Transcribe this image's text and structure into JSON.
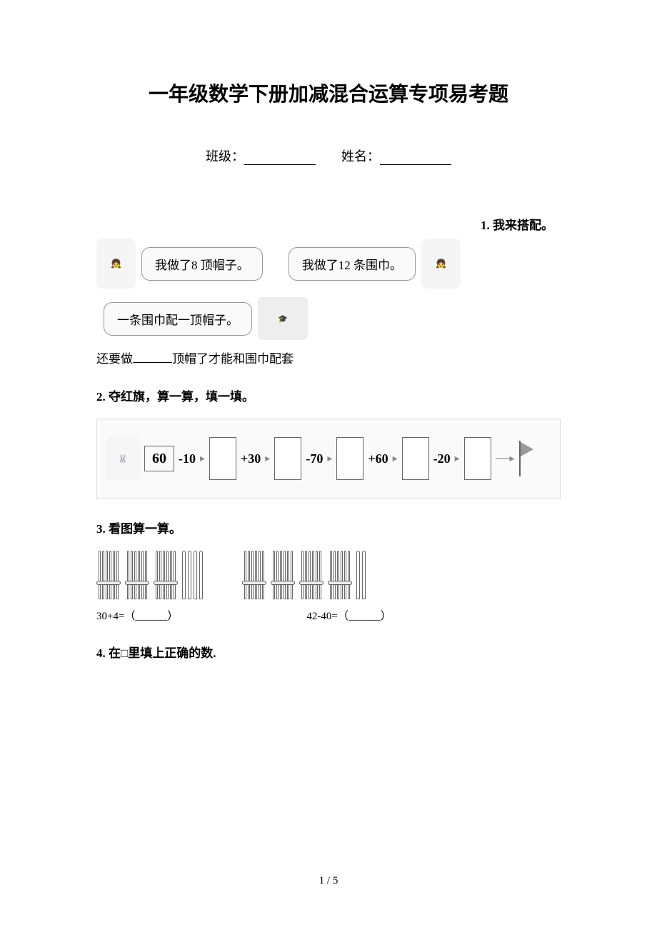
{
  "title": "一年级数学下册加减混合运算专项易考题",
  "header": {
    "class_label": "班级：",
    "name_label": "姓名："
  },
  "q1": {
    "number_label": "1. 我来搭配。",
    "bubble_left": "我做了8 顶帽子。",
    "bubble_right": "我做了12 条围巾。",
    "bubble_bottom": "一条围巾配一顶帽子。",
    "fill_text_before": "还要做",
    "fill_text_after": "顶帽了才能和围巾配套"
  },
  "q2": {
    "heading": "2. 夺红旗，算一算，填一填。",
    "start": "60",
    "ops": [
      "-10",
      "+30",
      "-70",
      "+60",
      "-20"
    ]
  },
  "q3": {
    "heading": "3. 看图算一算。",
    "left_bundles": 3,
    "left_singles": 4,
    "right_bundles": 4,
    "right_singles": 2,
    "expr_left": "30+4=（______）",
    "expr_right": "42-40=（______）"
  },
  "q4": {
    "heading": "4. 在□里填上正确的数."
  },
  "page_num": "1 / 5",
  "colors": {
    "text": "#000000",
    "bg": "#ffffff",
    "border_gray": "#999999",
    "light_bg": "#fafafa"
  }
}
